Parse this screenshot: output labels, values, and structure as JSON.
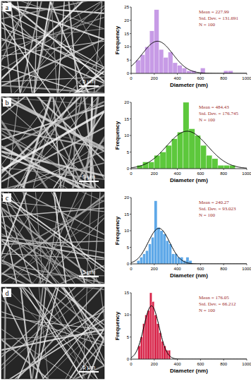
{
  "chart_data": [
    {
      "type": "histogram",
      "label": "a",
      "scale_bar": "5 µm",
      "x_label": "Diameter (nm)",
      "y_label": "Frequency",
      "color": "#c79be6",
      "bins": [
        40,
        80,
        120,
        160,
        200,
        240,
        280,
        320,
        360,
        400,
        440,
        480,
        520,
        560,
        600,
        640,
        680,
        720,
        760,
        800,
        840,
        880
      ],
      "values": [
        5,
        7,
        10,
        16,
        24,
        9,
        6,
        8,
        4,
        3,
        2,
        1,
        1,
        0,
        2,
        0,
        0,
        0,
        0,
        1,
        1
      ],
      "xlim": [
        0,
        1000
      ],
      "xticks": [
        0,
        200,
        400,
        600,
        800,
        1000
      ],
      "ylim": [
        0,
        25
      ],
      "yticks": [
        0,
        5,
        10,
        15,
        20,
        25
      ],
      "stats": {
        "mean": {
          "value": 227.99,
          "label": "Mean = 227.99"
        },
        "std_dev": {
          "value": 131.691,
          "label": "Std. Dev. = 131.691"
        },
        "n": {
          "value": 100,
          "label": "N = 100"
        }
      }
    },
    {
      "type": "histogram",
      "label": "b",
      "scale_bar": "5 µm",
      "x_label": "Diameter (nm)",
      "y_label": "Frequency",
      "color": "#5dc83c",
      "bins": [
        50,
        100,
        150,
        200,
        250,
        300,
        350,
        400,
        450,
        500,
        550,
        600,
        650,
        700,
        750,
        800,
        850,
        900
      ],
      "values": [
        1,
        2,
        2,
        4,
        5,
        7,
        9,
        11,
        20,
        12,
        10,
        7,
        4,
        3,
        1,
        1,
        1
      ],
      "xlim": [
        0,
        1000
      ],
      "xticks": [
        0,
        200,
        400,
        600,
        800,
        1000
      ],
      "ylim": [
        0,
        20
      ],
      "yticks": [
        0,
        5,
        10,
        15,
        20
      ],
      "stats": {
        "mean": {
          "value": 484.43,
          "label": "Mean = 484.43"
        },
        "std_dev": {
          "value": 176.745,
          "label": "Std. Dev. = 176.745"
        },
        "n": {
          "value": 100,
          "label": "N = 100"
        }
      }
    },
    {
      "type": "histogram",
      "label": "c",
      "scale_bar": "5 µm",
      "x_label": "Diameter (nm)",
      "y_label": "Frequency",
      "color": "#5ea8e8",
      "bins": [
        50,
        75,
        100,
        125,
        150,
        175,
        200,
        225,
        250,
        275,
        300,
        325,
        350,
        375,
        400,
        425,
        450,
        475,
        500,
        525
      ],
      "values": [
        1,
        2,
        3,
        4,
        6,
        8,
        19,
        11,
        10,
        9,
        7,
        6,
        3,
        3,
        2,
        2,
        1,
        2,
        1
      ],
      "xlim": [
        0,
        1000
      ],
      "xticks": [
        0,
        200,
        400,
        600,
        800,
        1000
      ],
      "ylim": [
        0,
        20
      ],
      "yticks": [
        0,
        5,
        10,
        15,
        20
      ],
      "stats": {
        "mean": {
          "value": 240.27,
          "label": "Mean = 240.27"
        },
        "std_dev": {
          "value": 93.023,
          "label": "Std. Dev. = 93.023"
        },
        "n": {
          "value": 100,
          "label": "N = 100"
        }
      }
    },
    {
      "type": "histogram",
      "label": "d",
      "scale_bar": "5 µm",
      "x_label": "Diameter (nm)",
      "y_label": "Frequency",
      "color": "#d8254a",
      "bins": [
        60,
        80,
        100,
        120,
        140,
        160,
        180,
        200,
        220,
        240,
        260,
        280,
        300,
        320,
        340
      ],
      "values": [
        3,
        5,
        8,
        10,
        11,
        15,
        13,
        10,
        8,
        6,
        4,
        3,
        2,
        2
      ],
      "xlim": [
        0,
        1000
      ],
      "xticks": [
        0,
        200,
        400,
        600,
        800,
        1000
      ],
      "ylim": [
        0,
        15
      ],
      "yticks": [
        0,
        5,
        10,
        15
      ],
      "stats": {
        "mean": {
          "value": 176.05,
          "label": "Mean = 176.05"
        },
        "std_dev": {
          "value": 66.212,
          "label": "Std. Dev. = 66.212"
        },
        "n": {
          "value": 100,
          "label": "N = 100"
        }
      }
    }
  ]
}
